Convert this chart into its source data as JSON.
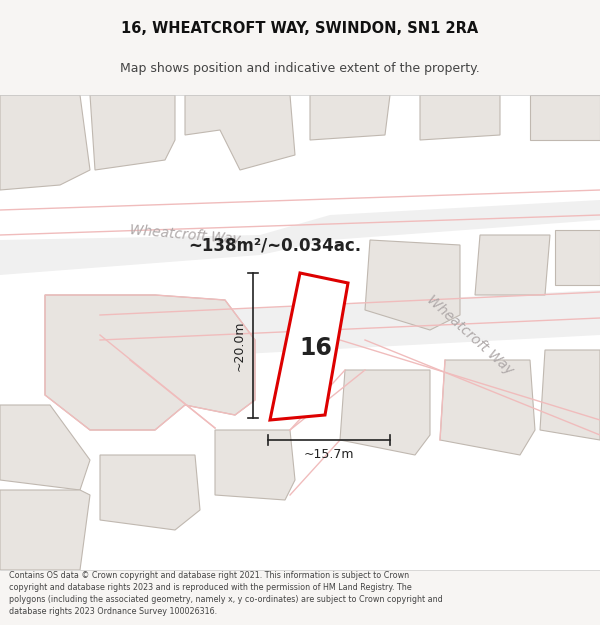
{
  "title": "16, WHEATCROFT WAY, SWINDON, SN1 2RA",
  "subtitle": "Map shows position and indicative extent of the property.",
  "area_text": "~138m²/~0.034ac.",
  "label_16": "16",
  "dim_width": "~15.7m",
  "dim_height": "~20.0m",
  "street_label_top": "Wheatcroft Way",
  "street_label_right": "Wheatcroft Way",
  "footer": "Contains OS data © Crown copyright and database right 2021. This information is subject to Crown copyright and database rights 2023 and is reproduced with the permission of HM Land Registry. The polygons (including the associated geometry, namely x, y co-ordinates) are subject to Crown copyright and database rights 2023 Ordnance Survey 100026316.",
  "bg_color": "#f7f5f3",
  "map_bg": "#ffffff",
  "road_color": "#f0bcbc",
  "bldg_fill": "#e8e4e0",
  "bldg_edge": "#c0b8b0",
  "plot_edge_color": "#dd0000",
  "plot_fill": "#ffffff",
  "text_color": "#222222",
  "street_text_color": "#b0aaaa",
  "dim_line_color": "#222222",
  "title_color": "#111111",
  "footer_color": "#444444"
}
